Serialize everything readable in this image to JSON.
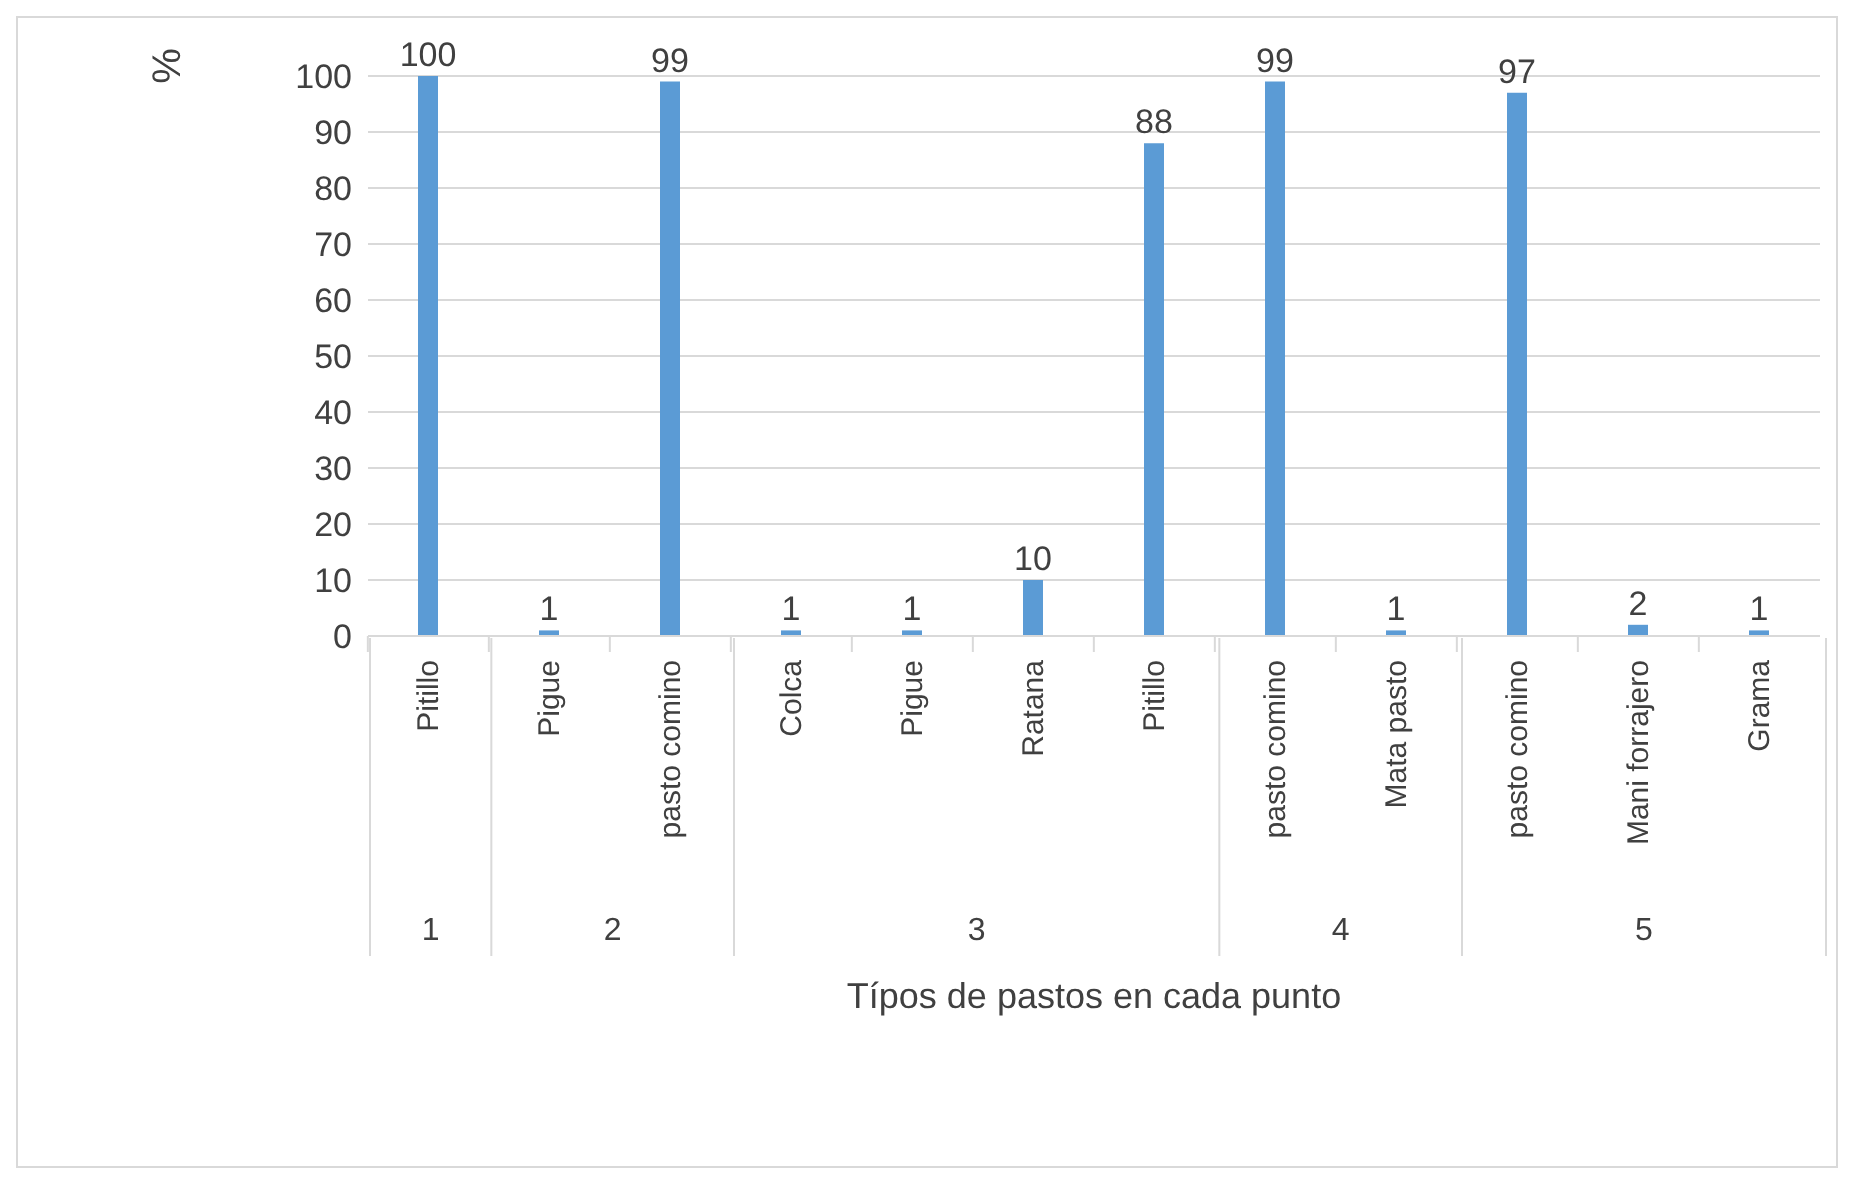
{
  "chart_data": {
    "type": "bar",
    "ylabel": "%",
    "xlabel": "Típos de pastos en cada punto",
    "categories": [
      "Pitillo",
      "Pigue",
      "pasto comino",
      "Colca",
      "Pigue",
      "Ratana",
      "Pitillo",
      "pasto comino",
      "Mata pasto",
      "pasto comino",
      "Mani forrajero",
      "Grama"
    ],
    "values": [
      100,
      1,
      99,
      1,
      1,
      10,
      88,
      99,
      1,
      97,
      2,
      1
    ],
    "color": "#5b9bd5",
    "ylim": [
      0,
      100
    ],
    "yticks": [
      0,
      10,
      20,
      30,
      40,
      50,
      60,
      70,
      80,
      90,
      100
    ],
    "grid": "y",
    "data_labels": true,
    "legend": false,
    "annotations": [
      "1",
      "2",
      "3",
      "4",
      "5"
    ]
  }
}
